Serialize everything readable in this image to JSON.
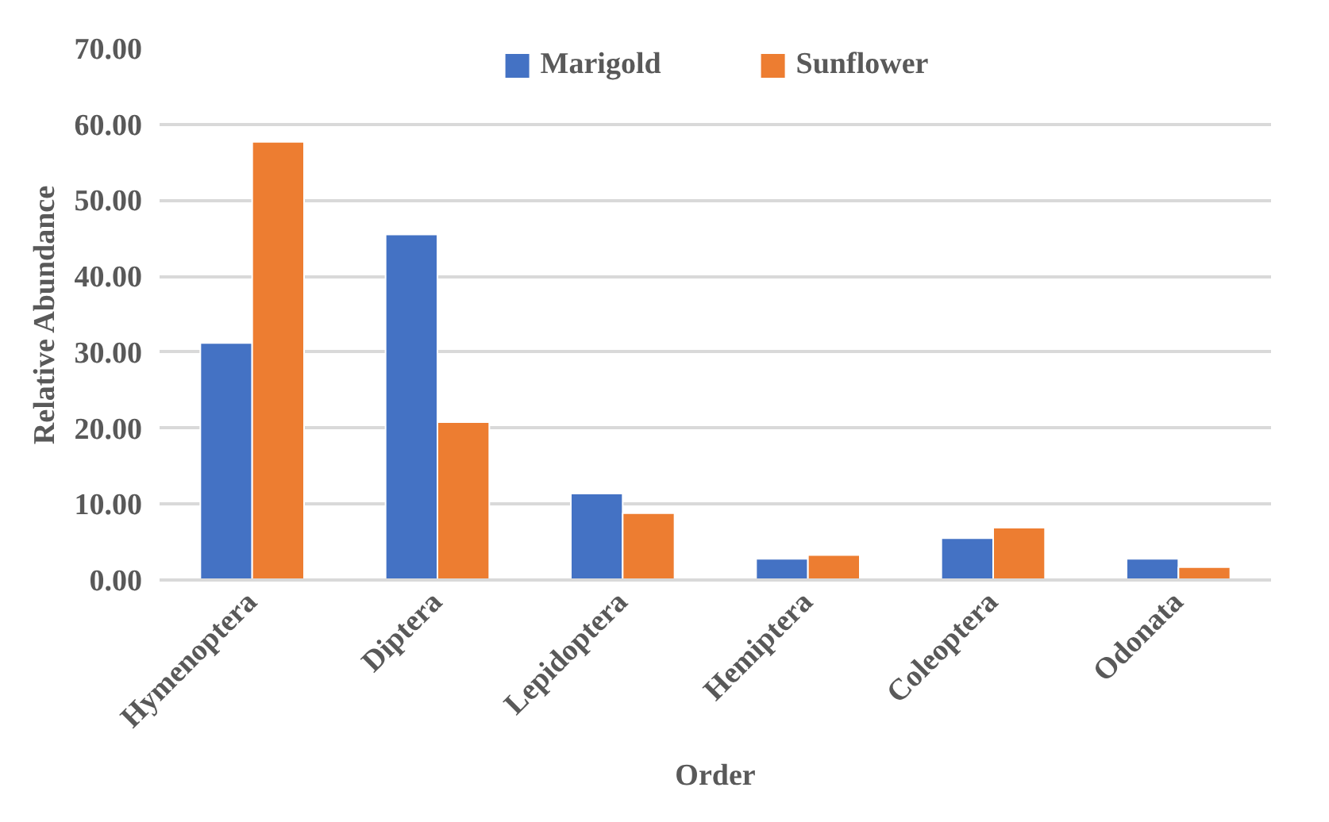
{
  "chart_data": {
    "type": "bar",
    "xlabel": "Order",
    "ylabel": "Relative Abundance",
    "categories": [
      "Hymenoptera",
      "Diptera",
      "Lepidoptera",
      "Hemiptera",
      "Coleoptera",
      "Odonata"
    ],
    "series": [
      {
        "name": "Marigold",
        "color": "#4472c4",
        "values": [
          31.2,
          45.5,
          11.4,
          2.8,
          5.5,
          2.8
        ]
      },
      {
        "name": "Sunflower",
        "color": "#ed7d31",
        "values": [
          57.7,
          20.8,
          8.8,
          3.3,
          6.9,
          1.7
        ]
      }
    ],
    "ylim": [
      0,
      70
    ],
    "yticks": [
      {
        "value": 0,
        "label": "0.00"
      },
      {
        "value": 10,
        "label": "10.00"
      },
      {
        "value": 20,
        "label": "20.00"
      },
      {
        "value": 30,
        "label": "30.00"
      },
      {
        "value": 40,
        "label": "40.00"
      },
      {
        "value": 50,
        "label": "50.00"
      },
      {
        "value": 60,
        "label": "60.00"
      },
      {
        "value": 70,
        "label": "70.00"
      }
    ],
    "grid": "y",
    "legend": "top"
  }
}
